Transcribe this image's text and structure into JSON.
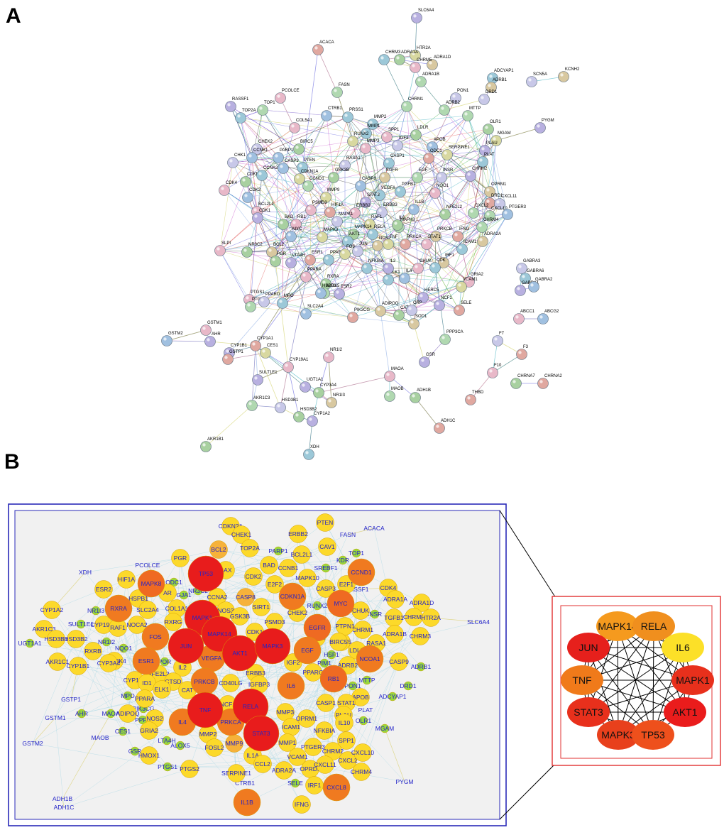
{
  "figure": {
    "panel_a_letter": "A",
    "panel_b_letter": "B",
    "colors": {
      "panel_b_border": "#2a2ab8",
      "panel_c_border": "#e03030",
      "panel_b_background": "#f1f1f1",
      "panel_b_edge": "#a9d8e6",
      "node_dark_red": "#e81c1c",
      "node_orange": "#f07a20",
      "node_yellow": "#fcd92a",
      "node_green": "#98d83c"
    }
  },
  "panel_a": {
    "nodes": [
      "SLC6A4",
      "ACACA",
      "HTR2A",
      "CHRM3",
      "ADRA1A",
      "ADRA1D",
      "CHRM5",
      "ADRA1B",
      "ADCYAP1",
      "ADRB1",
      "DRD1",
      "SCN5A",
      "KCNH2",
      "RASSF1",
      "PCOLCE",
      "FASN",
      "PON1",
      "MTTP",
      "PYGM",
      "TOP2A",
      "TOP1",
      "CTRB1",
      "PRSS1",
      "MMP2",
      "ADRB2",
      "OLR1",
      "MGAM",
      "CHRM1",
      "COL5A1",
      "MMP1",
      "SPP1",
      "LDLR",
      "APOB",
      "PLAU",
      "PLAT",
      "CHEK2",
      "RUNX2",
      "CCNB1",
      "IGF2",
      "ODC1",
      "SERPINE1",
      "CHK1",
      "PARP1",
      "BIRC5",
      "MMP3",
      "CASP1",
      "CHRM2",
      "CDKN2A",
      "CCNA2",
      "PTEN",
      "RASA1",
      "EGFR",
      "EGF",
      "INSR",
      "OPRM1",
      "NQO1",
      "CDK4",
      "CASP9",
      "GSK3B",
      "CASP8",
      "CCND1",
      "TGFB1",
      "VEGFA",
      "DRD1",
      "CXCL11",
      "CDK2",
      "CDKN1A",
      "MMP9",
      "STAT3",
      "IL1B",
      "CXCL2",
      "CXCL10",
      "PTGER3",
      "BCL2L1",
      "PSMD3",
      "CDK1",
      "RB1",
      "HIF1A",
      "ERBB2",
      "ERBB3",
      "RAF1",
      "MAPK8",
      "NFE2L2",
      "CHRM4",
      "BAD",
      "MYC",
      "MAPK14",
      "RELA",
      "IL6",
      "PRKCB",
      "TNF",
      "IFNG",
      "ADRA2A",
      "SLPI",
      "NR3C2",
      "BCL2",
      "LTA4H",
      "MAPK3",
      "MAPK1",
      "AKT1",
      "NOS2",
      "PRKCA",
      "STAT1",
      "ICAM1",
      "PGR",
      "ESR1",
      "PPARG",
      "NFKBIA",
      "CHUK",
      "IRF1",
      "PPARA",
      "RXRA",
      "ALOX5",
      "FOS",
      "JUN",
      "ELK1",
      "IL4",
      "IL2",
      "CDK",
      "GRIA2",
      "PTGS1",
      "PTGS2",
      "PPARD",
      "MPO",
      "SLC2A4",
      "HSPB1",
      "ESR2",
      "PIK3CG",
      "ADIPOQ",
      "CAT",
      "SOD1",
      "HERC5",
      "NCF1",
      "SELE",
      "VCAM1",
      "CRP",
      "PPP3CA",
      "GSR",
      "GSTM1",
      "GSTM2",
      "AHR",
      "CYP1A1",
      "CYP1B1",
      "GSTP1",
      "CES1",
      "CYP19A1",
      "NR1I2",
      "SULT1E1",
      "UGT1A1",
      "CYP3A4",
      "NR1I3",
      "AKR1C3",
      "HSD3B1",
      "HSD3B2",
      "CYP1A2",
      "AKR1B1",
      "XDH",
      "MAOA",
      "MAOB",
      "ADH1B",
      "ADH1C",
      "GABRA3",
      "GABRA6",
      "GABRA1",
      "GABRA2",
      "ABCC1",
      "ABCG2",
      "F7",
      "F3",
      "F10",
      "THBD",
      "CHRNA7",
      "CHRNA2"
    ]
  },
  "panel_b": {
    "nodes": [
      "XDH",
      "PCOLCE",
      "PGR",
      "TP53",
      "BCL2",
      "CDKN2A",
      "CHEK1",
      "TOP2A",
      "ERBB2",
      "PTEN",
      "ACACA",
      "FASN",
      "CAV1",
      "PARP1",
      "BCL2L1",
      "TOP1",
      "KDR",
      "BAX",
      "BAD",
      "CCNB1",
      "SREBF1",
      "HIF1A",
      "MAPK8",
      "ODC1",
      "CDK2",
      "E2F2",
      "MAPK10",
      "CCND1",
      "ESR2",
      "AR",
      "GJA1",
      "NR3C2",
      "CCNA2",
      "CASP8",
      "SIRT1",
      "CDKN1A",
      "CASP3",
      "E2F1",
      "RASSF1",
      "CDK4",
      "ADRA1A",
      "ADRA1D",
      "HSPB1",
      "COL1A1",
      "NOS3",
      "CHEK2",
      "RUNX2",
      "CYP1A2",
      "NR1I3",
      "SLC2A4",
      "MAPK1",
      "GSK3B",
      "PSMD3",
      "MYC",
      "CHUK",
      "INSR",
      "HERC5",
      "TGFB1",
      "CHRM5",
      "HTR2A",
      "SLC6A4",
      "SULT1E1",
      "CYP19A1",
      "RXRA",
      "RXRG",
      "MAPK14",
      "CDK1",
      "EGFR",
      "CHRM1",
      "AKR1C3",
      "HSD3B1",
      "HSD3B2",
      "NOCA2",
      "RAF1",
      "FOS",
      "JUN",
      "AKT1",
      "MAPK3",
      "IKBKB",
      "PTPN1",
      "ADRA1B",
      "CHRM3",
      "UGT1A1",
      "NR1I2",
      "RXRB",
      "NQO1",
      "EGF",
      "BIRC5",
      "HSF1",
      "LDLR",
      "RASA1",
      "NCOA1",
      "MAP2K4",
      "ESR1",
      "VEGFA",
      "IGF2",
      "PIM1",
      "ADRB2",
      "CASP9",
      "ADRB1",
      "AKR1C1",
      "CYP1B1",
      "CYP3A4",
      "NFE2L2",
      "CYP1A1",
      "POR",
      "IL2",
      "ERBB3",
      "PPARG",
      "RB1",
      "DRD1",
      "CTSD",
      "ID1",
      "CAT",
      "PRKCB",
      "CD40LG",
      "IGFBP3",
      "IL6",
      "PON1",
      "MTTP",
      "GSTP1",
      "MPO",
      "PPARA",
      "ELK1",
      "APOB",
      "ADCYAP1",
      "GSTM1",
      "AHR",
      "MAOA",
      "ADIPOQ",
      "PIK3CG",
      "TNF",
      "RELA",
      "NCF1",
      "CASP1",
      "STAT1",
      "PLAU",
      "PLAT",
      "CES1",
      "PPP3",
      "NOS2",
      "MMP3",
      "OPRM1",
      "OLR1",
      "MAOB",
      "GRIA2",
      "IL4",
      "MMP2",
      "PRKCA",
      "STAT3",
      "ICAM1",
      "NFKBIA",
      "IL10",
      "MGAM",
      "GSTM2",
      "LTA4H",
      "ALOX5",
      "FOSL2",
      "MMP9",
      "MMP1",
      "PTGER3",
      "SPP1",
      "GSR",
      "HMOX1",
      "IL1A",
      "CCL2",
      "VCAM1",
      "CHRM2",
      "CXCL2",
      "CXCL10",
      "PTGS1",
      "PTGS2",
      "SERPINE1",
      "CTRB1",
      "ADRA2A",
      "OPRD1",
      "CXCL11",
      "CHRM4",
      "PYGM",
      "ADH1B",
      "SELE",
      "IRF1",
      "CXCL8",
      "ADH1C",
      "IL1B",
      "IFNG"
    ]
  },
  "panel_c": {
    "nodes": [
      "MAPK14",
      "RELA",
      "JUN",
      "IL6",
      "TNF",
      "MAPK1",
      "STAT3",
      "AKT1",
      "MAPK3",
      "TP53"
    ]
  }
}
